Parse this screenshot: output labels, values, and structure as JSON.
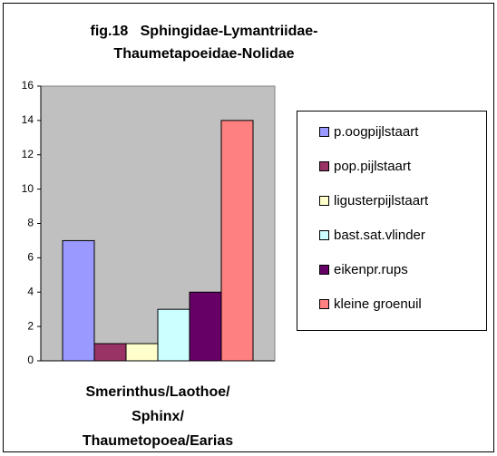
{
  "chart_data": {
    "type": "bar",
    "title": [
      "fig.18   Sphingidae-Lymantriidae-",
      "Thaumetapoeidae-Nolidae"
    ],
    "categories": [
      "Smerinthus/Laothoe/ Sphinx/ Thaumetopoea/Earias"
    ],
    "series": [
      {
        "name": "p.oogpijlstaart",
        "color": "#9999ff",
        "values": [
          7
        ]
      },
      {
        "name": "pop.pijlstaart",
        "color": "#993366",
        "values": [
          1
        ]
      },
      {
        "name": "ligusterpijlstaart",
        "color": "#ffffcc",
        "values": [
          1
        ]
      },
      {
        "name": "bast.sat.vlinder",
        "color": "#ccffff",
        "values": [
          3
        ]
      },
      {
        "name": "eikenpr.rups",
        "color": "#660066",
        "values": [
          4
        ]
      },
      {
        "name": "kleine groenuil",
        "color": "#ff8080",
        "values": [
          14
        ]
      }
    ],
    "ylim": [
      0,
      16
    ],
    "yticks": [
      0,
      2,
      4,
      6,
      8,
      10,
      12,
      14,
      16
    ],
    "plot_background": "#c0c0c0",
    "legend": "right"
  }
}
